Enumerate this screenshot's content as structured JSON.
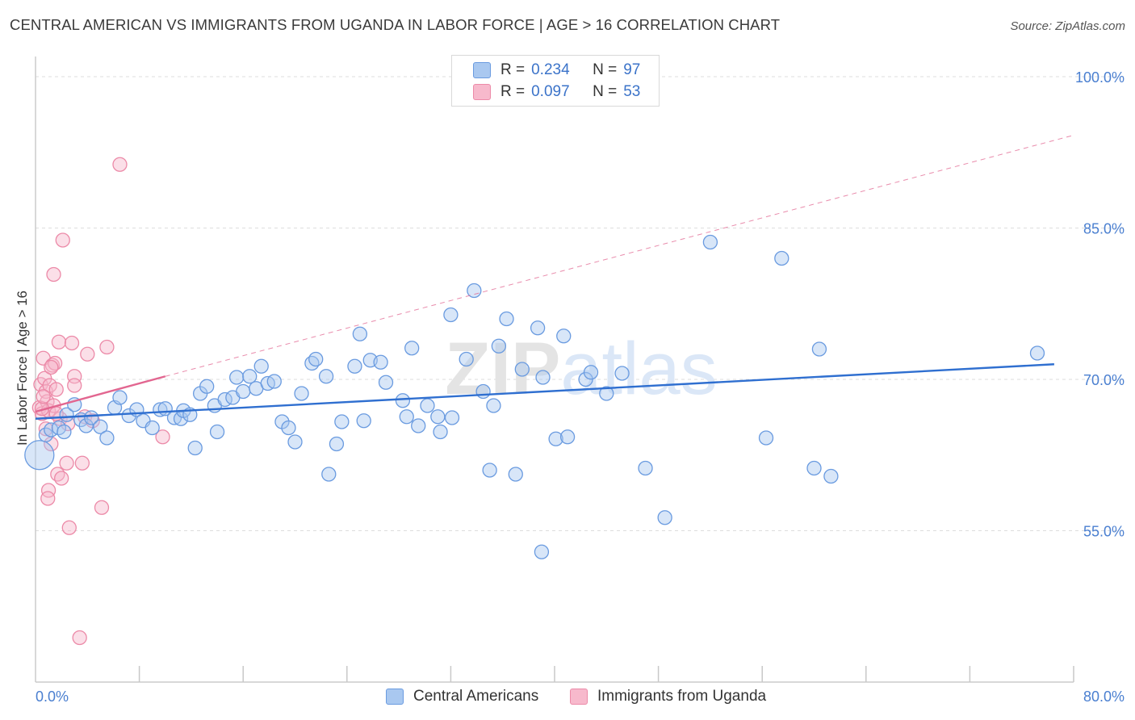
{
  "title": "CENTRAL AMERICAN VS IMMIGRANTS FROM UGANDA IN LABOR FORCE | AGE > 16 CORRELATION CHART",
  "source": "Source: ZipAtlas.com",
  "watermark": "ZIPatlas",
  "colors": {
    "blue_fill": "#a9c8f0",
    "blue_stroke": "#6a9be0",
    "blue_line": "#2f6fd0",
    "pink_fill": "#f7b9cc",
    "pink_stroke": "#ec8aa8",
    "pink_line": "#e26690",
    "grid": "#dddddd",
    "tick_label": "#4a7fd0"
  },
  "legend": {
    "rows": [
      {
        "r_label": "R =",
        "r_value": "0.234",
        "n_label": "N =",
        "n_value": "97"
      },
      {
        "r_label": "R =",
        "r_value": "0.097",
        "n_label": "N =",
        "n_value": "53"
      }
    ]
  },
  "chart_data": {
    "type": "scatter",
    "ylabel": "In Labor Force | Age > 16",
    "xlim": [
      0,
      80
    ],
    "ylim": [
      40,
      102
    ],
    "y_ticks": [
      {
        "value": 100,
        "label": "100.0%"
      },
      {
        "value": 85,
        "label": "85.0%"
      },
      {
        "value": 70,
        "label": "70.0%"
      },
      {
        "value": 55,
        "label": "55.0%"
      }
    ],
    "x_tick_labels": {
      "left": "0.0%",
      "right": "80.0%"
    },
    "x_minor_ticks": [
      8,
      16,
      24,
      32,
      40,
      48,
      56,
      64,
      72,
      80
    ],
    "series": [
      {
        "name": "Central Americans",
        "trend": {
          "x0": 0,
          "y0": 66.1,
          "x1": 78.5,
          "y1": 71.5
        },
        "points": [
          [
            0.3,
            62.5
          ],
          [
            0.8,
            64.5
          ],
          [
            1.2,
            65
          ],
          [
            1.8,
            65.2
          ],
          [
            2.4,
            66.5
          ],
          [
            2.2,
            64.8
          ],
          [
            3.0,
            67.5
          ],
          [
            3.5,
            66
          ],
          [
            3.9,
            65.4
          ],
          [
            4.3,
            66.2
          ],
          [
            5.0,
            65.3
          ],
          [
            5.5,
            64.2
          ],
          [
            6.1,
            67.2
          ],
          [
            6.5,
            68.2
          ],
          [
            7.2,
            66.4
          ],
          [
            7.8,
            67
          ],
          [
            8.3,
            65.9
          ],
          [
            9.0,
            65.2
          ],
          [
            9.6,
            67
          ],
          [
            10.0,
            67.1
          ],
          [
            10.7,
            66.2
          ],
          [
            11.2,
            66.1
          ],
          [
            11.4,
            66.9
          ],
          [
            11.9,
            66.5
          ],
          [
            12.3,
            63.2
          ],
          [
            12.7,
            68.6
          ],
          [
            13.2,
            69.3
          ],
          [
            13.8,
            67.4
          ],
          [
            14.0,
            64.8
          ],
          [
            14.6,
            68
          ],
          [
            15.2,
            68.2
          ],
          [
            15.5,
            70.2
          ],
          [
            16.0,
            68.8
          ],
          [
            16.5,
            70.3
          ],
          [
            17.0,
            69.1
          ],
          [
            17.4,
            71.3
          ],
          [
            17.9,
            69.6
          ],
          [
            18.4,
            69.8
          ],
          [
            19.0,
            65.8
          ],
          [
            19.5,
            65.2
          ],
          [
            20.0,
            63.8
          ],
          [
            20.5,
            68.6
          ],
          [
            21.3,
            71.6
          ],
          [
            21.6,
            72
          ],
          [
            22.4,
            70.3
          ],
          [
            23.2,
            63.6
          ],
          [
            22.6,
            60.6
          ],
          [
            23.6,
            65.8
          ],
          [
            24.6,
            71.3
          ],
          [
            25.0,
            74.5
          ],
          [
            25.3,
            65.9
          ],
          [
            25.8,
            71.9
          ],
          [
            26.6,
            71.7
          ],
          [
            27.0,
            69.7
          ],
          [
            28.3,
            67.9
          ],
          [
            28.6,
            66.3
          ],
          [
            29.0,
            73.1
          ],
          [
            29.5,
            65.4
          ],
          [
            30.2,
            67.4
          ],
          [
            31.0,
            66.3
          ],
          [
            31.2,
            64.8
          ],
          [
            32.0,
            76.4
          ],
          [
            32.1,
            66.2
          ],
          [
            33.2,
            72
          ],
          [
            33.8,
            78.8
          ],
          [
            34.5,
            68.8
          ],
          [
            35.0,
            61
          ],
          [
            35.3,
            67.4
          ],
          [
            35.7,
            73.3
          ],
          [
            36.3,
            76
          ],
          [
            37.0,
            60.6
          ],
          [
            37.5,
            71
          ],
          [
            38.7,
            75.1
          ],
          [
            39.1,
            70.2
          ],
          [
            39.0,
            52.9
          ],
          [
            40.1,
            64.1
          ],
          [
            40.7,
            74.3
          ],
          [
            41.0,
            64.3
          ],
          [
            42.4,
            70
          ],
          [
            42.8,
            70.7
          ],
          [
            44.0,
            68.6
          ],
          [
            45.2,
            70.6
          ],
          [
            47.0,
            61.2
          ],
          [
            48.5,
            56.3
          ],
          [
            52.0,
            83.6
          ],
          [
            56.3,
            64.2
          ],
          [
            57.5,
            82
          ],
          [
            60.0,
            61.2
          ],
          [
            60.4,
            73
          ],
          [
            61.3,
            60.4
          ],
          [
            77.2,
            72.6
          ]
        ]
      },
      {
        "name": "Immigrants from Uganda",
        "trend": {
          "x0": 0,
          "y0": 66.8,
          "x1": 10.0,
          "y1": 70.3
        },
        "trend_ext": {
          "x0": 10.0,
          "y0": 70.3,
          "x1": 80,
          "y1": 94.2
        },
        "points": [
          [
            0.3,
            67.2
          ],
          [
            0.4,
            69.5
          ],
          [
            0.5,
            66.6
          ],
          [
            0.6,
            72.1
          ],
          [
            0.7,
            70.1
          ],
          [
            0.8,
            68.8
          ],
          [
            0.9,
            67.8
          ],
          [
            1.0,
            66.9
          ],
          [
            1.1,
            69.4
          ],
          [
            1.2,
            63.6
          ],
          [
            1.3,
            71.4
          ],
          [
            1.4,
            67.4
          ],
          [
            1.5,
            71.6
          ],
          [
            1.6,
            69
          ],
          [
            1.7,
            60.6
          ],
          [
            1.8,
            73.7
          ],
          [
            1.9,
            66.1
          ],
          [
            2.0,
            60.2
          ],
          [
            2.1,
            83.8
          ],
          [
            2.4,
            61.7
          ],
          [
            2.6,
            55.3
          ],
          [
            2.8,
            73.6
          ],
          [
            3.0,
            70.3
          ],
          [
            3.0,
            69.4
          ],
          [
            3.4,
            44.4
          ],
          [
            3.6,
            61.7
          ],
          [
            3.8,
            66.3
          ],
          [
            4.0,
            72.5
          ],
          [
            4.4,
            65.9
          ],
          [
            5.1,
            57.3
          ],
          [
            5.5,
            73.2
          ],
          [
            6.5,
            91.3
          ],
          [
            9.8,
            64.3
          ],
          [
            1.4,
            80.4
          ],
          [
            1.0,
            59
          ],
          [
            0.95,
            58.2
          ],
          [
            0.5,
            67.1
          ],
          [
            0.6,
            68.3
          ],
          [
            1.6,
            66.6
          ],
          [
            0.8,
            65.1
          ],
          [
            1.2,
            71.2
          ],
          [
            2.5,
            65.6
          ]
        ]
      }
    ]
  }
}
